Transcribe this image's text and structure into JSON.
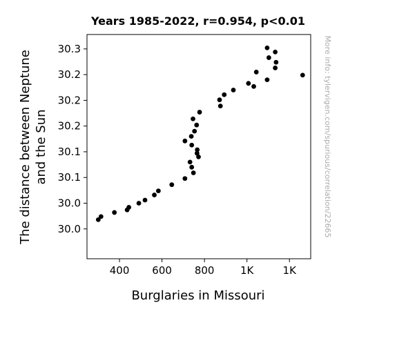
{
  "chart_data": {
    "type": "scatter",
    "title": "Years 1985-2022, r=0.954, p<0.01",
    "xlabel": "Burglaries in Missouri",
    "ylabel_lines": [
      "The distance between Neptune",
      "and the Sun"
    ],
    "watermark": "More info: tylervigen.com/spurious/correlation/22665",
    "xlim": [
      247,
      1300
    ],
    "ylim": [
      29.892,
      30.328
    ],
    "x_ticks": [
      {
        "value": 400,
        "label": "400"
      },
      {
        "value": 600,
        "label": "600"
      },
      {
        "value": 800,
        "label": "800"
      },
      {
        "value": 1000,
        "label": "1K"
      },
      {
        "value": 1200,
        "label": "1K"
      }
    ],
    "y_ticks": [
      {
        "value": 29.95,
        "label": "30.0"
      },
      {
        "value": 30.0,
        "label": "30.0"
      },
      {
        "value": 30.05,
        "label": "30.1"
      },
      {
        "value": 30.1,
        "label": "30.1"
      },
      {
        "value": 30.15,
        "label": "30.2"
      },
      {
        "value": 30.2,
        "label": "30.2"
      },
      {
        "value": 30.25,
        "label": "30.2"
      },
      {
        "value": 30.3,
        "label": "30.3"
      }
    ],
    "point_color": "#000000",
    "points": [
      {
        "x": 1095,
        "y": 30.302
      },
      {
        "x": 1133,
        "y": 30.294
      },
      {
        "x": 1103,
        "y": 30.283
      },
      {
        "x": 1137,
        "y": 30.274
      },
      {
        "x": 1133,
        "y": 30.263
      },
      {
        "x": 1044,
        "y": 30.255
      },
      {
        "x": 1262,
        "y": 30.249
      },
      {
        "x": 1095,
        "y": 30.24
      },
      {
        "x": 1007,
        "y": 30.233
      },
      {
        "x": 1032,
        "y": 30.227
      },
      {
        "x": 936,
        "y": 30.22
      },
      {
        "x": 893,
        "y": 30.211
      },
      {
        "x": 871,
        "y": 30.201
      },
      {
        "x": 875,
        "y": 30.189
      },
      {
        "x": 777,
        "y": 30.177
      },
      {
        "x": 746,
        "y": 30.164
      },
      {
        "x": 763,
        "y": 30.152
      },
      {
        "x": 753,
        "y": 30.14
      },
      {
        "x": 738,
        "y": 30.13
      },
      {
        "x": 708,
        "y": 30.121
      },
      {
        "x": 740,
        "y": 30.113
      },
      {
        "x": 766,
        "y": 30.104
      },
      {
        "x": 765,
        "y": 30.097
      },
      {
        "x": 772,
        "y": 30.09
      },
      {
        "x": 732,
        "y": 30.08
      },
      {
        "x": 740,
        "y": 30.07
      },
      {
        "x": 748,
        "y": 30.059
      },
      {
        "x": 708,
        "y": 30.048
      },
      {
        "x": 646,
        "y": 30.036
      },
      {
        "x": 583,
        "y": 30.024
      },
      {
        "x": 564,
        "y": 30.016
      },
      {
        "x": 520,
        "y": 30.006
      },
      {
        "x": 491,
        "y": 30.0
      },
      {
        "x": 444,
        "y": 29.992
      },
      {
        "x": 436,
        "y": 29.987
      },
      {
        "x": 376,
        "y": 29.982
      },
      {
        "x": 313,
        "y": 29.974
      },
      {
        "x": 300,
        "y": 29.968
      }
    ]
  }
}
